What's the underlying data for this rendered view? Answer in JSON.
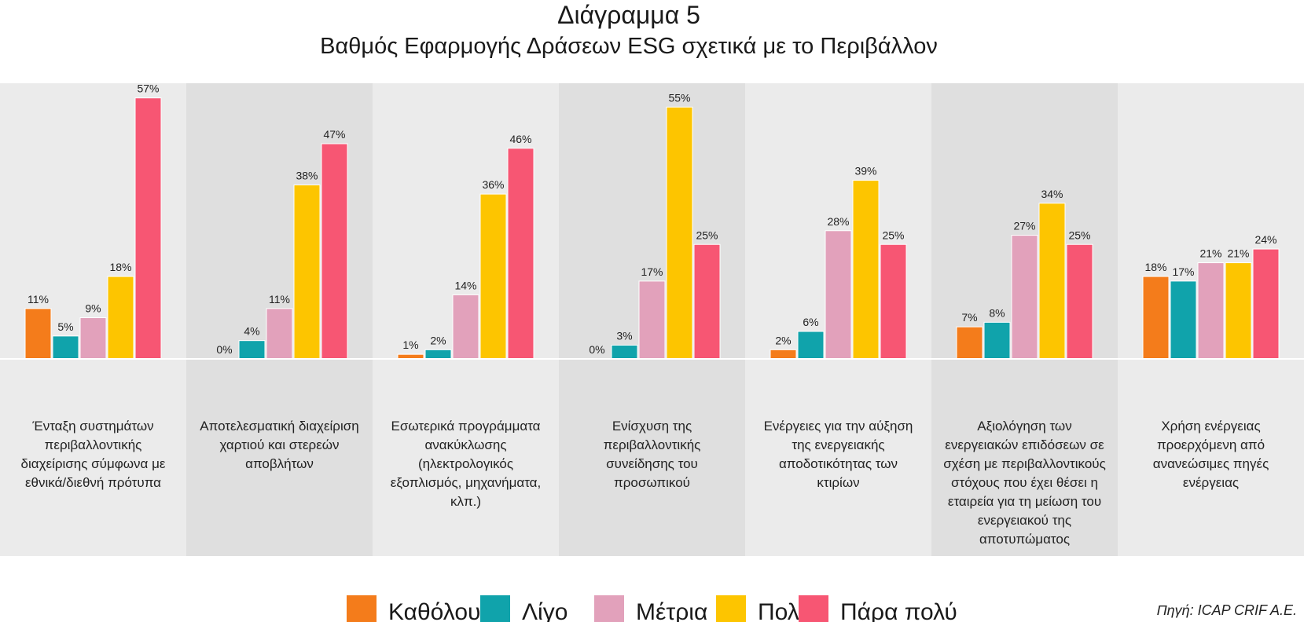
{
  "chart_data": {
    "type": "bar",
    "title": "Διάγραμμα 5",
    "subtitle": "Βαθμός Εφαρμογής Δράσεων ESG σχετικά με το Περιβάλλον",
    "categories": [
      [
        "Ένταξη συστημάτων",
        "περιβαλλοντικής",
        "διαχείρισης σύμφωνα με",
        "εθνικά/διεθνή πρότυπα"
      ],
      [
        "Αποτελεσματική διαχείριση",
        "χαρτιού και στερεών",
        "αποβλήτων"
      ],
      [
        "Εσωτερικά προγράμματα",
        "ανακύκλωσης",
        "(ηλεκτρολογικός",
        "εξοπλισμός, μηχανήματα,",
        "κλπ.)"
      ],
      [
        "Ενίσχυση της",
        "περιβαλλοντικής",
        "συνείδησης του",
        "προσωπικού"
      ],
      [
        "Ενέργειες για την αύξηση",
        "της ενεργειακής",
        "αποδοτικότητας των",
        "κτιρίων"
      ],
      [
        "Αξιολόγηση των",
        "ενεργειακών επιδόσεων σε",
        "σχέση με περιβαλλοντικούς",
        "στόχους που έχει θέσει η",
        "εταιρεία για τη μείωση του",
        "ενεργειακού της",
        "αποτυπώματος"
      ],
      [
        "Χρήση ενέργειας",
        "προερχόμενη από",
        "ανανεώσιμες πηγές",
        "ενέργειας"
      ]
    ],
    "series": [
      {
        "name": "Καθόλου",
        "color": "#f47c1b",
        "values": [
          11,
          0,
          1,
          0,
          2,
          7,
          18
        ]
      },
      {
        "name": "Λίγο",
        "color": "#10a3ab",
        "values": [
          5,
          4,
          2,
          3,
          6,
          8,
          17
        ]
      },
      {
        "name": "Μέτρια",
        "color": "#e2a1bb",
        "values": [
          9,
          11,
          14,
          17,
          28,
          27,
          21
        ]
      },
      {
        "name": "Πολύ",
        "color": "#fdc500",
        "values": [
          18,
          38,
          36,
          55,
          39,
          34,
          21
        ]
      },
      {
        "name": "Πάρα πολύ",
        "color": "#f75673",
        "values": [
          57,
          47,
          46,
          25,
          25,
          25,
          24
        ]
      }
    ],
    "value_suffix": "%",
    "ylim": [
      0,
      60
    ],
    "grid": false,
    "legend_position": "bottom"
  },
  "source": "Πηγή: ICAP CRIF A.E.",
  "colors": {
    "panel_light": "#ebebeb",
    "panel_dark": "#dfdfdf",
    "baseline": "#ffffff"
  }
}
